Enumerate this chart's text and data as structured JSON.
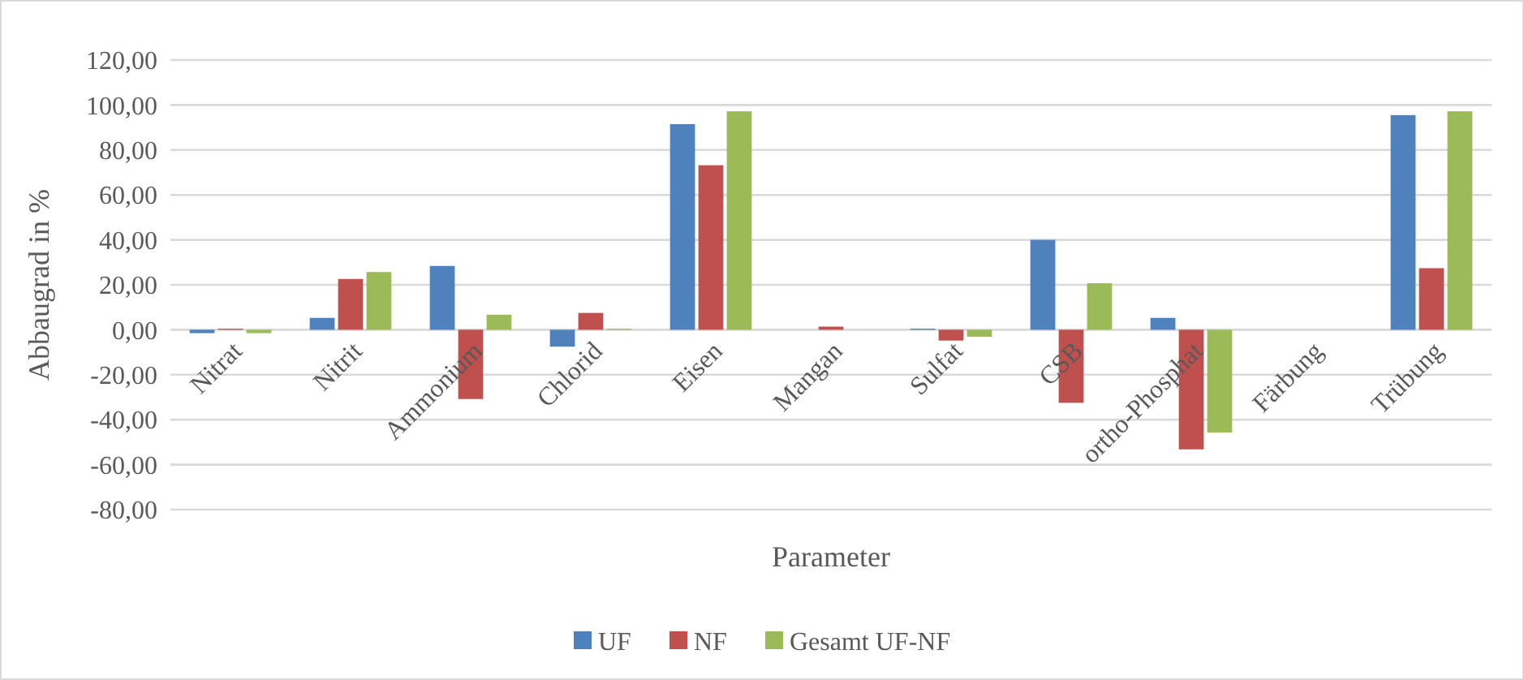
{
  "chart_data": {
    "type": "bar",
    "xlabel": "Parameter",
    "ylabel": "Abbaugrad in %",
    "categories": [
      "Nitrat",
      "Nitrit",
      "Ammonium",
      "Chlorid",
      "Eisen",
      "Mangan",
      "Sulfat",
      "CSB",
      "ortho-Phosphat",
      "Färbung",
      "Trübung"
    ],
    "series": [
      {
        "name": "UF",
        "color": "#4f81bd",
        "values": [
          -1.5,
          5.3,
          28.4,
          -7.5,
          91.5,
          0,
          0.5,
          40,
          5.3,
          null,
          95.5
        ]
      },
      {
        "name": "NF",
        "color": "#c0504d",
        "values": [
          0.5,
          22.6,
          -30.8,
          7.5,
          73.2,
          1.4,
          -4.8,
          -32.5,
          -53.2,
          null,
          27.4
        ]
      },
      {
        "name": "Gesamt UF-NF",
        "color": "#9bbb59",
        "values": [
          -1.5,
          25.7,
          6.7,
          0.5,
          97.2,
          0,
          -3.1,
          20.7,
          -45.7,
          null,
          97.2
        ]
      }
    ],
    "ylim": [
      -80,
      120
    ],
    "yticks": [
      {
        "value": -80,
        "label": "-80,00"
      },
      {
        "value": -60,
        "label": "-60,00"
      },
      {
        "value": -40,
        "label": "-40,00"
      },
      {
        "value": -20,
        "label": "-20,00"
      },
      {
        "value": 0,
        "label": "0,00"
      },
      {
        "value": 20,
        "label": "20,00"
      },
      {
        "value": 40,
        "label": "40,00"
      },
      {
        "value": 60,
        "label": "60,00"
      },
      {
        "value": 80,
        "label": "80,00"
      },
      {
        "value": 100,
        "label": "100,00"
      },
      {
        "value": 120,
        "label": "120,00"
      }
    ],
    "grid": "y",
    "legend": "bottom"
  }
}
